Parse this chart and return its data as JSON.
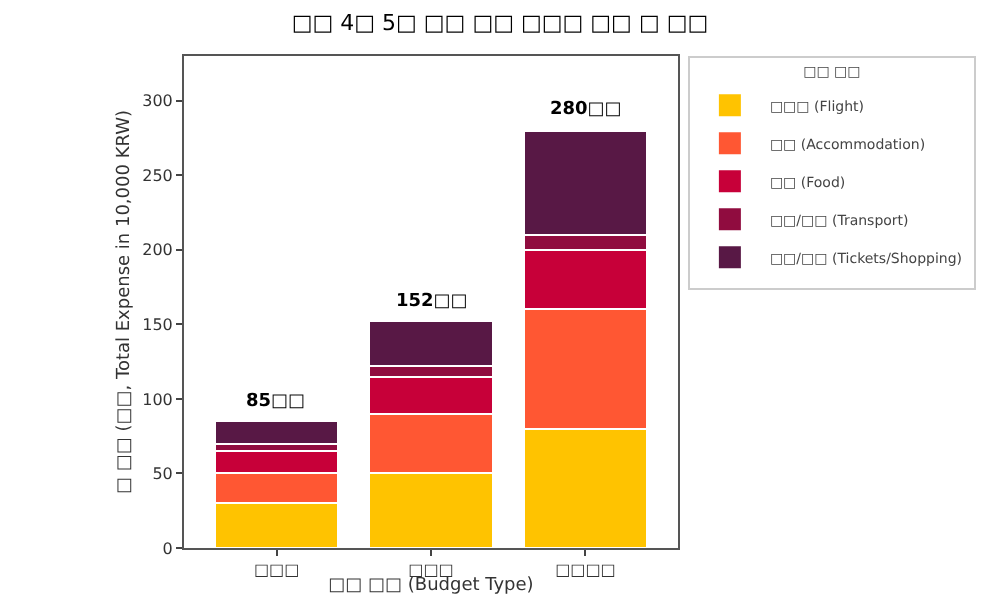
{
  "chart_data": {
    "type": "bar",
    "title": "□□ 4□ 5□ □□ □□ □□□ □□ □ □□",
    "xlabel": "□□ □□ (Budget Type)",
    "ylabel": "□ □□ (□□, Total Expense in 10,000 KRW)",
    "legend_title": "□□ □□",
    "categories": [
      "□□□",
      "□□□",
      "□□□□"
    ],
    "stacked": true,
    "series": [
      {
        "name": "□□□ (Flight)",
        "color": "#ffc300",
        "values": [
          30,
          50,
          80
        ]
      },
      {
        "name": "□□ (Accommodation)",
        "color": "#ff5733",
        "values": [
          20,
          40,
          80
        ]
      },
      {
        "name": "□□ (Food)",
        "color": "#c70039",
        "values": [
          15,
          25,
          40
        ]
      },
      {
        "name": "□□/□□ (Transport)",
        "color": "#900c3f",
        "values": [
          5,
          7,
          10
        ]
      },
      {
        "name": "□□/□□ (Tickets/Shopping)",
        "color": "#581845",
        "values": [
          15,
          30,
          70
        ]
      }
    ],
    "totals": [
      "85□□",
      "152□□",
      "280□□"
    ],
    "ylim": [
      0,
      330
    ],
    "yticks": [
      0,
      50,
      100,
      150,
      200,
      250,
      300
    ],
    "grid": false,
    "legend": "top right"
  }
}
